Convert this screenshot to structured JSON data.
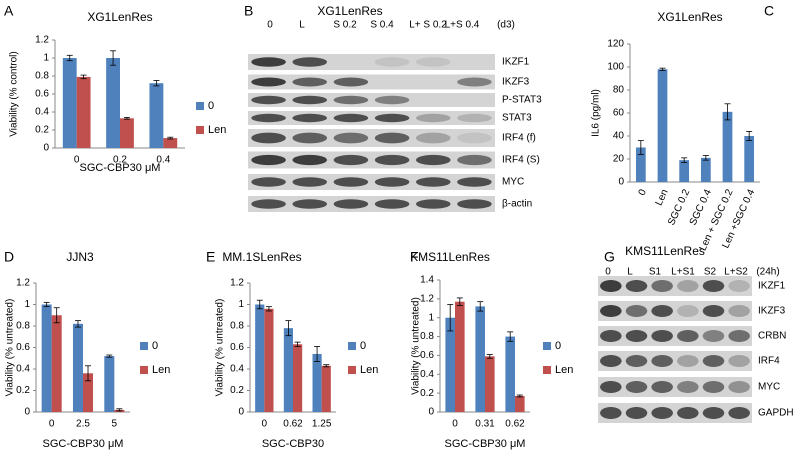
{
  "chart_data": [
    {
      "type": "bar",
      "panel": "A",
      "title": "XG1LenRes",
      "y_label": "Viability (% control)",
      "x_label": "SGC-CBP30  μM",
      "categories": [
        "0",
        "0.2",
        "0.4"
      ],
      "ylim": [
        0,
        1.2
      ],
      "yticks": [
        0,
        0.2,
        0.4,
        0.6,
        0.8,
        1,
        1.2
      ],
      "legend": "right",
      "series": [
        {
          "name": "0",
          "color": "#4f81bd",
          "values": [
            1.0,
            1.0,
            0.72
          ],
          "errors": [
            0.03,
            0.08,
            0.03
          ]
        },
        {
          "name": "Len",
          "color": "#c0504d",
          "values": [
            0.79,
            0.33,
            0.11
          ],
          "errors": [
            0.02,
            0.01,
            0.01
          ]
        }
      ]
    },
    {
      "type": "bar",
      "panel": "C",
      "title": "XG1LenRes",
      "y_label": "IL6 (pg/ml)",
      "categories": [
        "0",
        "Len",
        "SGC 0.2",
        "SGC 0.4",
        "Len + SGC 0.2",
        "Len +SGC 0.4"
      ],
      "ylim": [
        0,
        120
      ],
      "yticks": [
        0,
        20,
        40,
        60,
        80,
        100,
        120
      ],
      "series": [
        {
          "color": "#4f81bd",
          "values": [
            30,
            98,
            19,
            21,
            61,
            40
          ],
          "errors": [
            6,
            1,
            2,
            2,
            7,
            4
          ]
        }
      ]
    },
    {
      "type": "bar",
      "panel": "D",
      "title": "JJN3",
      "y_label": "Viability (% untreated)",
      "x_label": "SGC-CBP30  μM",
      "categories": [
        "0",
        "2.5",
        "5"
      ],
      "ylim": [
        0,
        1.2
      ],
      "yticks": [
        0,
        0.2,
        0.4,
        0.6,
        0.8,
        1,
        1.2
      ],
      "legend": "right",
      "series": [
        {
          "name": "0",
          "color": "#4f81bd",
          "values": [
            1.0,
            0.82,
            0.52
          ],
          "errors": [
            0.02,
            0.03,
            0.01
          ]
        },
        {
          "name": "Len",
          "color": "#c0504d",
          "values": [
            0.9,
            0.36,
            0.02
          ],
          "errors": [
            0.07,
            0.07,
            0.01
          ]
        }
      ]
    },
    {
      "type": "bar",
      "panel": "E",
      "title": "MM.1SLenRes",
      "y_label": "Viability (% untreated)",
      "x_label": "SGC-CBP30",
      "categories": [
        "0",
        "0.62",
        "1.25"
      ],
      "ylim": [
        0,
        1.2
      ],
      "yticks": [
        0,
        0.2,
        0.4,
        0.6,
        0.8,
        1,
        1.2
      ],
      "legend": "right",
      "series": [
        {
          "name": "0",
          "color": "#4f81bd",
          "values": [
            1.0,
            0.78,
            0.54
          ],
          "errors": [
            0.04,
            0.07,
            0.07
          ]
        },
        {
          "name": "Len",
          "color": "#c0504d",
          "values": [
            0.96,
            0.63,
            0.43
          ],
          "errors": [
            0.02,
            0.02,
            0.01
          ]
        }
      ]
    },
    {
      "type": "bar",
      "panel": "F",
      "title": "KMS11LenRes",
      "y_label": "Viability (% untreated)",
      "x_label": "SGC-CBP30  μM",
      "categories": [
        "0",
        "0.31",
        "0.62"
      ],
      "ylim": [
        0,
        1.4
      ],
      "yticks": [
        0,
        0.2,
        0.4,
        0.6,
        0.8,
        1,
        1.2,
        1.4
      ],
      "legend": "right",
      "series": [
        {
          "name": "0",
          "color": "#4f81bd",
          "values": [
            1.0,
            1.12,
            0.8
          ],
          "errors": [
            0.14,
            0.05,
            0.05
          ]
        },
        {
          "name": "Len",
          "color": "#c0504d",
          "values": [
            1.17,
            0.59,
            0.17
          ],
          "errors": [
            0.04,
            0.02,
            0.01
          ]
        }
      ]
    }
  ],
  "blots": [
    {
      "panel": "B",
      "title": "XG1LenRes",
      "lanes": [
        "0",
        "L",
        "S 0.2",
        "S 0.4",
        "L+ S 0.2",
        "L+S 0.4",
        "(d3)"
      ],
      "proteins": [
        "IKZF1",
        "IKZF3",
        "P-STAT3",
        "STAT3",
        "IRF4 (f)",
        "IRF4 (S)",
        "MYC",
        "β-actin"
      ]
    },
    {
      "panel": "G",
      "title": "KMS11LenRes",
      "lanes": [
        "0",
        "L",
        "S1",
        "L+S1",
        "S2",
        "L+S2",
        "(24h)"
      ],
      "proteins": [
        "IKZF1",
        "IKZF3",
        "CRBN",
        "IRF4",
        "MYC",
        "GAPDH"
      ]
    }
  ]
}
